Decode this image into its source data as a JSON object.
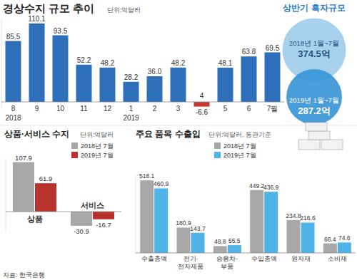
{
  "chart_data": [
    {
      "type": "bar",
      "title": "경상수지 규모 추이",
      "subtitle": "단위:억달러",
      "categories": [
        "8",
        "9",
        "10",
        "11",
        "12",
        "1",
        "2",
        "3",
        "4",
        "5",
        "6",
        "7월"
      ],
      "values": [
        85.5,
        110.1,
        93.5,
        52.2,
        48.2,
        28.2,
        36.0,
        48.2,
        -6.6,
        48.1,
        63.8,
        69.5
      ],
      "value_labels": [
        "85.5",
        "110.1",
        "93.5",
        "52.2",
        "48.2",
        "28.2",
        "36.0",
        "48.2",
        "-6.6",
        "48.1",
        "63.8",
        "69.5"
      ],
      "colors": [
        "#2e6fba",
        "#2e6fba",
        "#2e6fba",
        "#2e6fba",
        "#2e6fba",
        "#2e6fba",
        "#2e6fba",
        "#2e6fba",
        "#c9372c",
        "#2e6fba",
        "#2e6fba",
        "#2e6fba"
      ],
      "annotations": [
        {
          "text": "2018",
          "category": "8"
        },
        {
          "text": "2019",
          "category": "1"
        }
      ],
      "ylim": [
        -10,
        115
      ],
      "yticks": [
        0
      ],
      "tick_labels": "x",
      "data_labels": true,
      "grid": false
    },
    {
      "type": "bubble",
      "title": "상반기 흑자규모",
      "categories": [
        "2018년 1월~7월",
        "2019년 1월~7월"
      ],
      "values": [
        374.5,
        287.2
      ],
      "value_labels": [
        "374.5억",
        "287.2억"
      ],
      "colors": [
        "#9fcdec",
        "#3a95d6"
      ],
      "data_labels": true
    },
    {
      "type": "bar",
      "title": "상품·서비스 수지",
      "subtitle": "단위:억달러",
      "categories": [
        "상품",
        "서비스"
      ],
      "series": [
        {
          "name": "2018년 7월",
          "color": "#a8a8a8",
          "values": [
            107.9,
            -30.9
          ]
        },
        {
          "name": "2019년 7월",
          "color": "#b8322e",
          "values": [
            61.9,
            -16.7
          ]
        }
      ],
      "ylim": [
        -45,
        115
      ],
      "yticks": [
        0
      ],
      "tick_labels": "x",
      "data_labels": true,
      "legend": "top-right",
      "grid": false
    },
    {
      "type": "bar",
      "title": "주요 품목 수출입",
      "subtitle": "단위:억달러, 통관기준",
      "categories": [
        "수출총액",
        "전기·전자제품",
        "승용차·부품",
        "수입총액",
        "원자재",
        "소비재"
      ],
      "series": [
        {
          "name": "2018년 7월",
          "color": "#a8a8a8",
          "values": [
            518.1,
            180.9,
            48.8,
            449.2,
            234.8,
            68.4
          ]
        },
        {
          "name": "2019년 7월",
          "color": "#4fb3e8",
          "values": [
            460.9,
            143.7,
            55.5,
            436.9,
            216.6,
            74.6
          ]
        }
      ],
      "ylim": [
        0,
        560
      ],
      "yticks": [
        0
      ],
      "tick_labels": "x",
      "data_labels": true,
      "legend": "top-right",
      "grid": false
    }
  ],
  "source": "자료: 한국은행"
}
